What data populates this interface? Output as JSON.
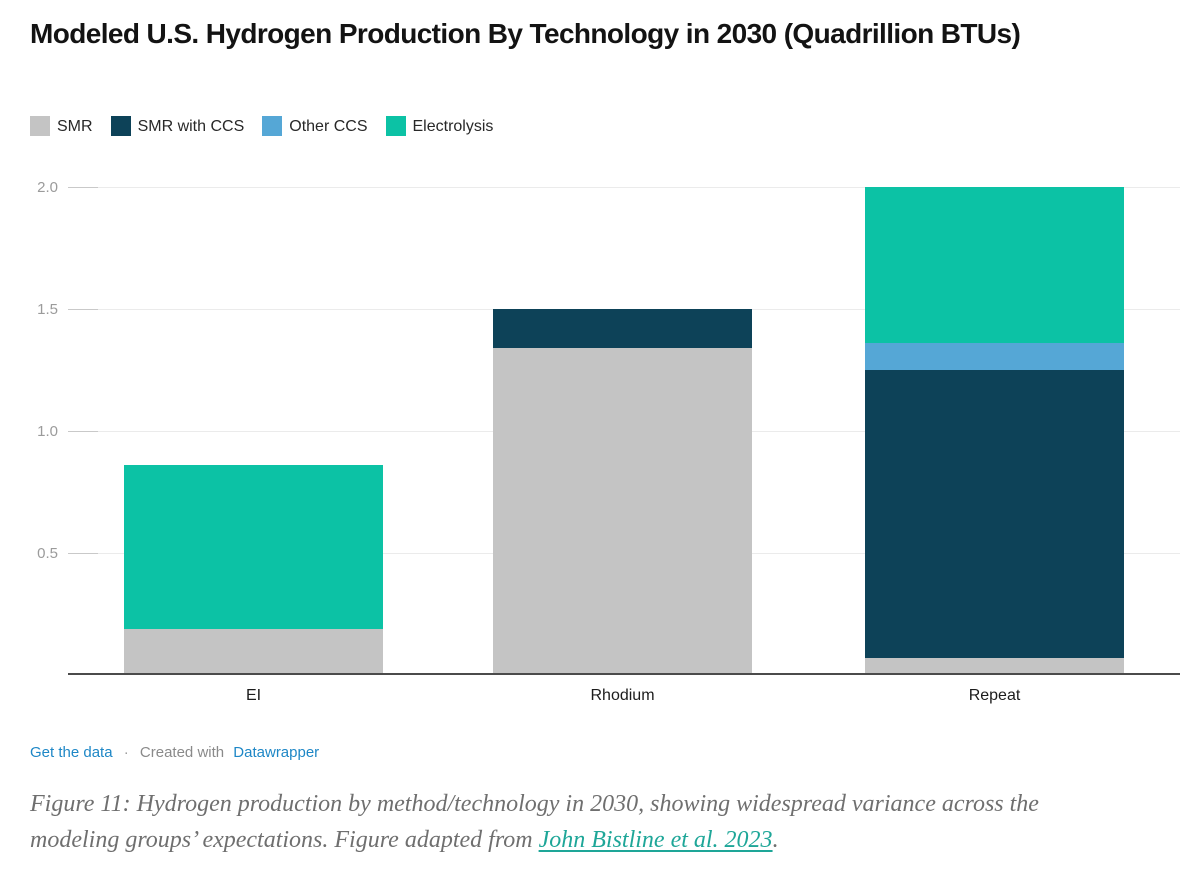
{
  "header": {
    "title": "Modeled U.S. Hydrogen Production By Technology in 2030 (Quadrillion BTUs)"
  },
  "chart_data": {
    "type": "bar",
    "stacked": true,
    "title": "Modeled U.S. Hydrogen Production By Technology in 2030 (Quadrillion BTUs)",
    "categories": [
      "EI",
      "Rhodium",
      "Repeat"
    ],
    "series": [
      {
        "name": "SMR",
        "color": "#c4c4c4",
        "values": [
          0.19,
          1.34,
          0.07
        ]
      },
      {
        "name": "SMR with CCS",
        "color": "#0d4258",
        "values": [
          0.0,
          0.16,
          1.18
        ]
      },
      {
        "name": "Other CCS",
        "color": "#55a7d6",
        "values": [
          0.0,
          0.0,
          0.11
        ]
      },
      {
        "name": "Electrolysis",
        "color": "#0cc2a5",
        "values": [
          0.67,
          0.0,
          0.64
        ]
      }
    ],
    "totals": [
      0.86,
      1.5,
      2.0
    ],
    "xlabel": "",
    "ylabel": "",
    "ylim": [
      0,
      2.0
    ],
    "yticks": [
      0.5,
      1.0,
      1.5,
      2.0
    ],
    "yticklabels": [
      "0.5",
      "1.0",
      "1.5",
      "2.0"
    ],
    "grid": true,
    "legend_position": "top",
    "axis_color": "#4b4b4b",
    "gridline_color": "#ebebeb"
  },
  "footer": {
    "get_data": "Get the data",
    "separator": "·",
    "created_with": "Created with",
    "datawrapper": "Datawrapper",
    "link_color": "#1e87c6"
  },
  "caption": {
    "text_before_link": "Figure 11: Hydrogen production by method/technology in 2030, showing widespread variance across the modeling groups’ expectations. Figure adapted from ",
    "link": "John Bistline et al. 2023",
    "text_after_link": ".",
    "link_color": "#1ea698"
  }
}
